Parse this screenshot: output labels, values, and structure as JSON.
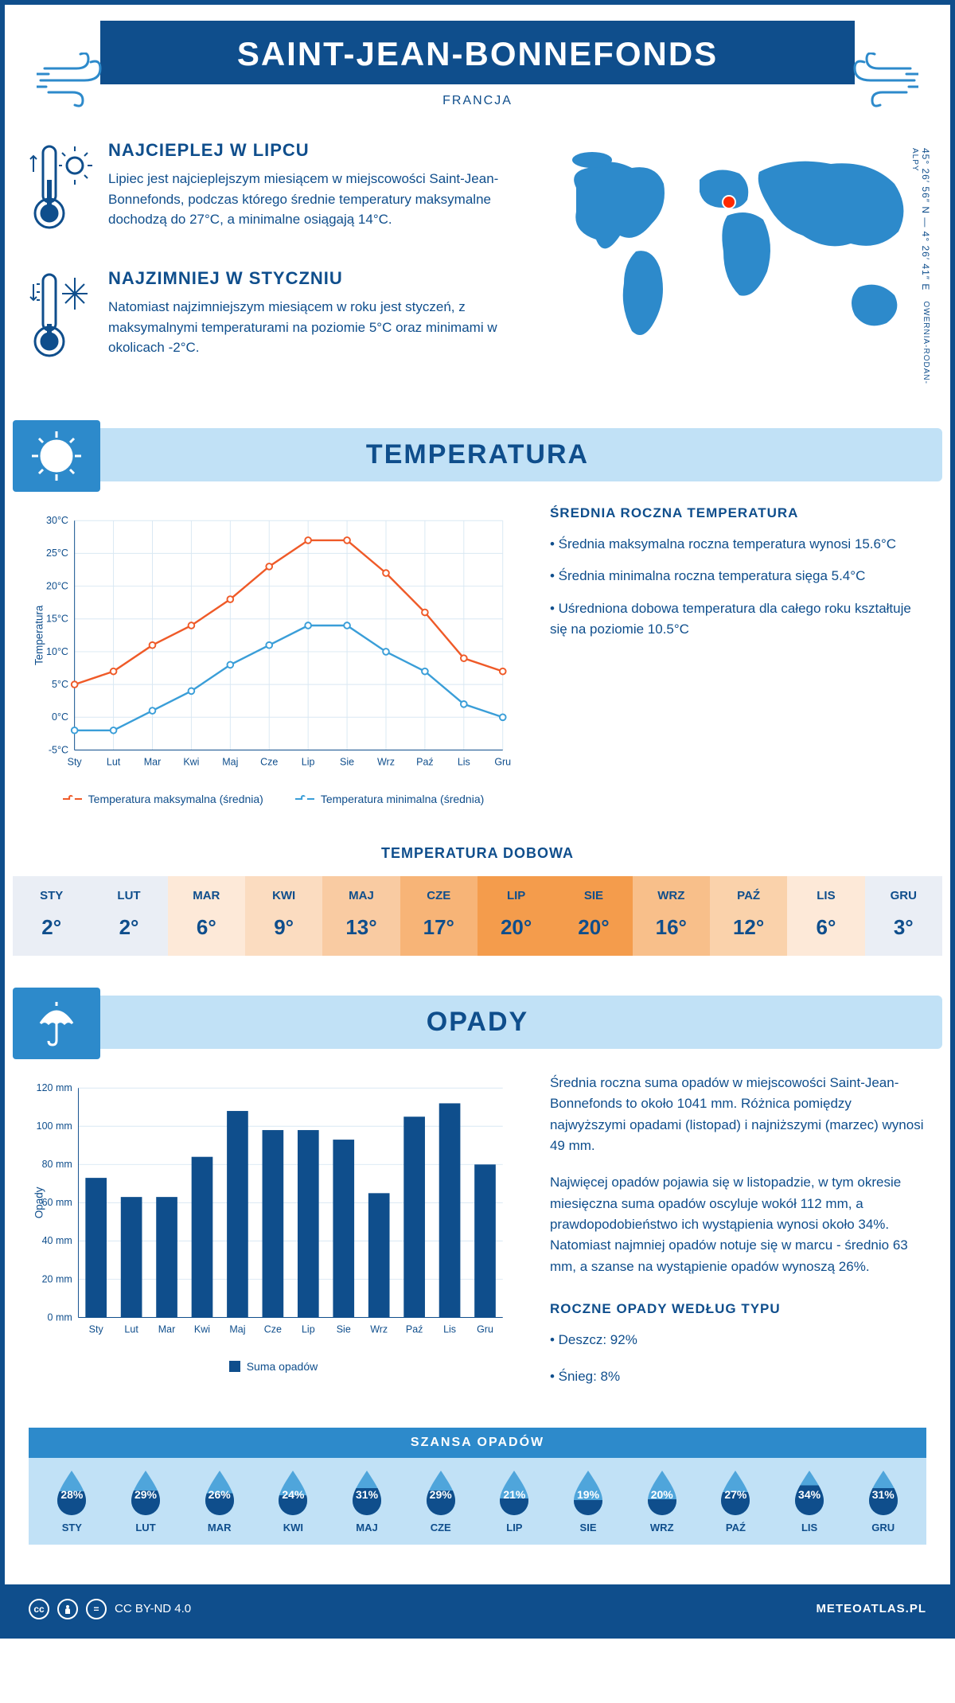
{
  "header": {
    "title": "SAINT-JEAN-BONNEFONDS",
    "subtitle": "FRANCJA",
    "coords": "45° 26′ 56″ N — 4° 26′ 41″ E",
    "region": "OWERNIA-RODAN-ALPY"
  },
  "intro": {
    "hot": {
      "title": "NAJCIEPLEJ W LIPCU",
      "text": "Lipiec jest najcieplejszym miesiącem w miejscowości Saint-Jean-Bonnefonds, podczas którego średnie temperatury maksymalne dochodzą do 27°C, a minimalne osiągają 14°C."
    },
    "cold": {
      "title": "NAJZIMNIEJ W STYCZNIU",
      "text": "Natomiast najzimniejszym miesiącem w roku jest styczeń, z maksymalnymi temperaturami na poziomie 5°C oraz minimami w okolicach -2°C."
    }
  },
  "temperature": {
    "section_title": "TEMPERATURA",
    "stats_title": "ŚREDNIA ROCZNA TEMPERATURA",
    "stats": [
      "• Średnia maksymalna roczna temperatura wynosi 15.6°C",
      "• Średnia minimalna roczna temperatura sięga 5.4°C",
      "• Uśredniona dobowa temperatura dla całego roku kształtuje się na poziomie 10.5°C"
    ],
    "chart": {
      "ylabel": "Temperatura",
      "months": [
        "Sty",
        "Lut",
        "Mar",
        "Kwi",
        "Maj",
        "Cze",
        "Lip",
        "Sie",
        "Wrz",
        "Paź",
        "Lis",
        "Gru"
      ],
      "yticks": [
        -5,
        0,
        5,
        10,
        15,
        20,
        25,
        30
      ],
      "ytick_labels": [
        "-5°C",
        "0°C",
        "5°C",
        "10°C",
        "15°C",
        "20°C",
        "25°C",
        "30°C"
      ],
      "max_series": [
        5,
        7,
        11,
        14,
        18,
        23,
        27,
        27,
        22,
        16,
        9,
        7
      ],
      "min_series": [
        -2,
        -2,
        1,
        4,
        8,
        11,
        14,
        14,
        10,
        7,
        2,
        0
      ],
      "max_color": "#ef5a28",
      "min_color": "#3a9ed8",
      "grid_color": "#d9e8f3",
      "legend_max": "Temperatura maksymalna (średnia)",
      "legend_min": "Temperatura minimalna (średnia)"
    },
    "dobowa": {
      "title": "TEMPERATURA DOBOWA",
      "months": [
        "STY",
        "LUT",
        "MAR",
        "KWI",
        "MAJ",
        "CZE",
        "LIP",
        "SIE",
        "WRZ",
        "PAŹ",
        "LIS",
        "GRU"
      ],
      "values": [
        "2°",
        "2°",
        "6°",
        "9°",
        "13°",
        "17°",
        "20°",
        "20°",
        "16°",
        "12°",
        "6°",
        "3°"
      ],
      "bg_colors": [
        "#eaeef5",
        "#eaeef5",
        "#fde9d8",
        "#fbdcc0",
        "#f9cba2",
        "#f7b477",
        "#f49c4c",
        "#f49c4c",
        "#f8bf8a",
        "#fad2ab",
        "#fde9d8",
        "#eaeef5"
      ],
      "text_color": "#0f4e8c",
      "text_color_hot": "#0f4e8c"
    }
  },
  "precip": {
    "section_title": "OPADY",
    "text1": "Średnia roczna suma opadów w miejscowości Saint-Jean-Bonnefonds to około 1041 mm. Różnica pomiędzy najwyższymi opadami (listopad) i najniższymi (marzec) wynosi 49 mm.",
    "text2": "Najwięcej opadów pojawia się w listopadzie, w tym okresie miesięczna suma opadów oscyluje wokół 112 mm, a prawdopodobieństwo ich wystąpienia wynosi około 34%. Natomiast najmniej opadów notuje się w marcu - średnio 63 mm, a szanse na wystąpienie opadów wynoszą 26%.",
    "types_title": "ROCZNE OPADY WEDŁUG TYPU",
    "types": [
      "• Deszcz: 92%",
      "• Śnieg: 8%"
    ],
    "chart": {
      "ylabel": "Opady",
      "months": [
        "Sty",
        "Lut",
        "Mar",
        "Kwi",
        "Maj",
        "Cze",
        "Lip",
        "Sie",
        "Wrz",
        "Paź",
        "Lis",
        "Gru"
      ],
      "values": [
        73,
        63,
        63,
        84,
        108,
        98,
        98,
        93,
        65,
        105,
        112,
        80
      ],
      "yticks": [
        0,
        20,
        40,
        60,
        80,
        100,
        120
      ],
      "ytick_labels": [
        "0 mm",
        "20 mm",
        "40 mm",
        "60 mm",
        "80 mm",
        "100 mm",
        "120 mm"
      ],
      "bar_color": "#0f4e8c",
      "grid_color": "#d9e8f3",
      "legend": "Suma opadów"
    },
    "szansa": {
      "title": "SZANSA OPADÓW",
      "months": [
        "STY",
        "LUT",
        "MAR",
        "KWI",
        "MAJ",
        "CZE",
        "LIP",
        "SIE",
        "WRZ",
        "PAŹ",
        "LIS",
        "GRU"
      ],
      "values": [
        "28%",
        "29%",
        "26%",
        "24%",
        "31%",
        "29%",
        "21%",
        "19%",
        "20%",
        "27%",
        "34%",
        "31%"
      ],
      "fill_fracs": [
        0.6,
        0.62,
        0.55,
        0.5,
        0.68,
        0.62,
        0.42,
        0.38,
        0.4,
        0.58,
        0.75,
        0.68
      ],
      "drop_dark": "#0f4e8c",
      "drop_light": "#4fa5db"
    }
  },
  "footer": {
    "license": "CC BY-ND 4.0",
    "brand": "METEOATLAS.PL"
  },
  "colors": {
    "primary": "#0f4e8c",
    "light_blue": "#c1e1f6",
    "mid_blue": "#2d8acb"
  }
}
